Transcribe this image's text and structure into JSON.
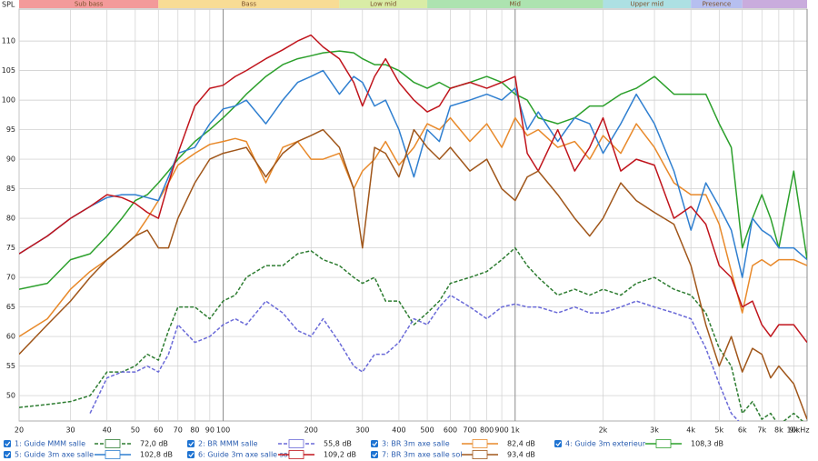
{
  "chart_data": {
    "type": "line",
    "y_axis_label": "SPL",
    "x_scale": "log",
    "grid": true,
    "xlim": [
      20,
      10000
    ],
    "ylim": [
      45.7,
      115.4
    ],
    "yticks": [
      50,
      55,
      60,
      65,
      70,
      75,
      80,
      85,
      90,
      95,
      100,
      105,
      110
    ],
    "xticks": [
      20,
      30,
      40,
      50,
      60,
      70,
      80,
      90,
      100,
      200,
      300,
      400,
      500,
      600,
      700,
      800,
      900,
      {
        "value": 1000,
        "label": "1k"
      },
      {
        "value": 2000,
        "label": "2k"
      },
      {
        "value": 3000,
        "label": "3k"
      },
      {
        "value": 4000,
        "label": "4k"
      },
      {
        "value": 5000,
        "label": "5k"
      },
      {
        "value": 6000,
        "label": "6k"
      },
      {
        "value": 7000,
        "label": "7k"
      },
      {
        "value": 8000,
        "label": "8k"
      },
      {
        "value": 9000,
        "label": "9k"
      },
      {
        "value": 10000,
        "label": "10kHz"
      }
    ],
    "bands": [
      {
        "name": "Sub bass",
        "range": [
          20,
          60
        ],
        "color": "#f39a9a"
      },
      {
        "name": "Bass",
        "range": [
          60,
          250
        ],
        "color": "#f8dc95"
      },
      {
        "name": "Low mid",
        "range": [
          250,
          500
        ],
        "color": "#d9eca6"
      },
      {
        "name": "Mid",
        "range": [
          500,
          2000
        ],
        "color": "#ade3b0"
      },
      {
        "name": "Upper mid",
        "range": [
          2000,
          4000
        ],
        "color": "#ade0e3"
      },
      {
        "name": "Presence",
        "range": [
          4000,
          6000
        ],
        "color": "#b6bff0"
      },
      {
        "range": [
          6000,
          10000
        ],
        "color": "#c9acdd"
      }
    ],
    "x": [
      20,
      25,
      30,
      35,
      40,
      45,
      50,
      55,
      60,
      65,
      70,
      80,
      90,
      100,
      110,
      120,
      140,
      160,
      180,
      200,
      220,
      250,
      280,
      300,
      330,
      360,
      400,
      450,
      500,
      550,
      600,
      700,
      800,
      900,
      1000,
      1100,
      1200,
      1400,
      1600,
      1800,
      2000,
      2300,
      2600,
      3000,
      3500,
      4000,
      4500,
      5000,
      5500,
      6000,
      6500,
      7000,
      7500,
      8000,
      9000,
      10000
    ],
    "series": [
      {
        "name": "1: Guide MMM salle",
        "legend_value": "72,0 dB",
        "color": "#2e7d32",
        "dashed": true,
        "values": [
          48,
          48.5,
          49,
          50,
          54,
          54,
          55,
          57,
          56,
          61,
          65,
          65,
          63,
          66,
          67,
          70,
          72,
          72,
          74,
          74.5,
          73,
          72,
          70,
          69,
          70,
          66,
          66,
          62,
          64,
          66,
          69,
          70,
          71,
          73,
          75,
          72,
          70,
          67,
          68,
          67,
          68,
          67,
          69,
          70,
          68,
          67,
          64,
          58,
          55,
          47,
          49,
          46,
          47,
          45,
          47,
          45
        ]
      },
      {
        "name": "2: BR MMM salle",
        "legend_value": "55,8 dB",
        "color": "#6a6ad8",
        "dashed": true,
        "values": [
          null,
          null,
          null,
          47,
          53,
          54,
          54,
          55,
          54,
          57,
          62,
          59,
          60,
          62,
          63,
          62,
          66,
          64,
          61,
          60,
          63,
          59,
          55,
          54,
          57,
          57,
          59,
          63,
          62,
          65,
          67,
          65,
          63,
          65,
          65.5,
          65,
          65,
          64,
          65,
          64,
          64,
          65,
          66,
          65,
          64,
          63,
          58,
          52,
          47,
          45,
          null,
          null,
          null,
          null,
          null,
          null
        ]
      },
      {
        "name": "3: BR 3m axe salle",
        "legend_value": "82,4 dB",
        "color": "#e8892a",
        "dashed": false,
        "values": [
          60,
          63,
          68,
          71,
          73,
          75,
          77,
          80,
          83,
          86,
          89,
          91,
          92.5,
          93,
          93.5,
          93,
          86,
          92,
          93,
          90,
          90,
          91,
          85,
          88,
          90,
          93,
          89,
          92,
          96,
          95,
          97,
          93,
          96,
          92,
          97,
          94,
          95,
          92,
          93,
          90,
          94,
          91,
          96,
          92,
          86,
          84,
          84,
          79,
          71,
          64,
          72,
          73,
          72,
          73,
          73,
          72
        ]
      },
      {
        "name": "4: Guide 3m exterieur",
        "legend_value": "108,3 dB",
        "color": "#2ca02c",
        "dashed": false,
        "values": [
          68,
          69,
          73,
          74,
          77,
          80,
          83,
          84,
          86,
          88,
          90,
          93,
          95,
          97,
          99,
          101,
          104,
          106,
          107,
          107.5,
          108,
          108.3,
          108,
          107,
          106,
          106,
          105,
          103,
          102,
          103,
          102,
          103,
          104,
          103,
          101,
          100,
          97,
          96,
          97,
          99,
          99,
          101,
          102,
          104,
          101,
          101,
          101,
          96,
          92,
          75,
          80,
          84,
          80,
          75,
          88,
          73
        ]
      },
      {
        "name": "5: Guide 3m axe salle",
        "legend_value": "102,8 dB",
        "color": "#2f7fd0",
        "dashed": false,
        "values": [
          74,
          77,
          80,
          82,
          83.5,
          84,
          84,
          83.5,
          83,
          87,
          91,
          92,
          96,
          98.5,
          99,
          100,
          96,
          100,
          103,
          104,
          105,
          101,
          104,
          103,
          99,
          100,
          95,
          87,
          95,
          93,
          99,
          100,
          101,
          100,
          102,
          95,
          98,
          93,
          97,
          96,
          91,
          96,
          101,
          96,
          88,
          78,
          86,
          82,
          78,
          70,
          80,
          78,
          77,
          75,
          75,
          73
        ]
      },
      {
        "name": "6: Guide 3m axe salle sol",
        "legend_value": "109,2 dB",
        "color": "#c0141c",
        "dashed": false,
        "values": [
          74,
          77,
          80,
          82,
          84,
          83.5,
          82.5,
          81,
          80,
          86,
          91,
          99,
          102,
          102.5,
          104,
          105,
          107,
          108.5,
          110,
          111,
          109,
          107,
          103,
          99,
          104,
          107,
          103,
          100,
          98,
          99,
          102,
          103,
          102,
          103,
          104,
          91,
          88,
          95,
          88,
          92,
          97,
          88,
          90,
          89,
          80,
          82,
          79,
          72,
          70,
          65,
          66,
          62,
          60,
          62,
          62,
          59
        ]
      },
      {
        "name": "7: BR 3m axe salle sol",
        "legend_value": "93,4 dB",
        "color": "#a0561a",
        "dashed": false,
        "values": [
          57,
          62,
          66,
          70,
          73,
          75,
          77,
          78,
          75,
          75,
          80,
          86,
          90,
          91,
          91.5,
          92,
          87,
          91,
          93,
          94,
          95,
          92,
          85,
          75,
          92,
          91,
          87,
          95,
          92,
          90,
          92,
          88,
          90,
          85,
          83,
          87,
          88,
          84,
          80,
          77,
          80,
          86,
          83,
          81,
          79,
          72,
          62,
          55,
          60,
          54,
          58,
          57,
          53,
          55,
          52,
          46
        ]
      }
    ]
  }
}
